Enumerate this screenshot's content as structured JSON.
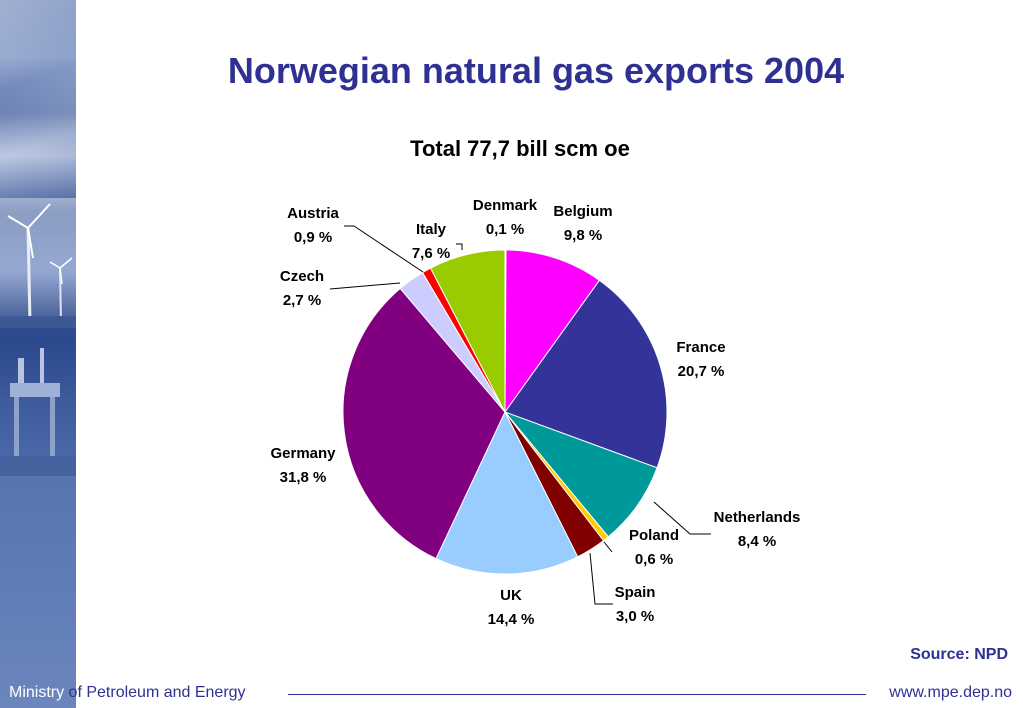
{
  "header": {
    "title": "Norwegian natural gas exports 2004",
    "subtitle": "Total 77,7 bill scm oe"
  },
  "footer": {
    "ministry_first": "Ministry",
    "ministry_rest": " of Petroleum and Energy",
    "url": "www.mpe.dep.no",
    "source": "Source: NPD"
  },
  "chart_data": {
    "type": "pie",
    "title": "Norwegian natural gas exports 2004",
    "subtitle": "Total 77,7 bill scm oe",
    "slices": [
      {
        "name": "Denmark",
        "label": "0,1 %",
        "value": 0.1,
        "color": "#2e3192"
      },
      {
        "name": "Belgium",
        "label": "9,8 %",
        "value": 9.8,
        "color": "#ff00ff"
      },
      {
        "name": "France",
        "label": "20,7 %",
        "value": 20.7,
        "color": "#333399"
      },
      {
        "name": "Netherlands",
        "label": "8,4 %",
        "value": 8.4,
        "color": "#009999"
      },
      {
        "name": "Poland",
        "label": "0,6 %",
        "value": 0.6,
        "color": "#ffcc00"
      },
      {
        "name": "Spain",
        "label": "3,0 %",
        "value": 3.0,
        "color": "#800000"
      },
      {
        "name": "UK",
        "label": "14,4 %",
        "value": 14.4,
        "color": "#99ccff"
      },
      {
        "name": "Germany",
        "label": "31,8 %",
        "value": 31.8,
        "color": "#800080"
      },
      {
        "name": "Czech",
        "label": "2,7 %",
        "value": 2.7,
        "color": "#ccccff"
      },
      {
        "name": "Austria",
        "label": "0,9 %",
        "value": 0.9,
        "color": "#ff0000"
      },
      {
        "name": "Italy",
        "label": "7,6 %",
        "value": 7.6,
        "color": "#99cc00"
      }
    ]
  }
}
